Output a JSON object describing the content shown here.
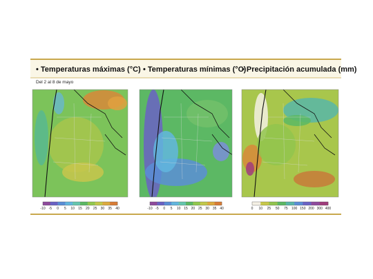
{
  "subtitle": "Del 2 al 8 de mayo",
  "panels": [
    {
      "title": "• Temperaturas máximas (°C)",
      "legend": {
        "ticks": [
          -10,
          -5,
          0,
          5,
          10,
          15,
          20,
          25,
          30,
          35,
          40
        ],
        "colors": [
          "#8e4a9c",
          "#6a62c4",
          "#5a8ed6",
          "#62b6de",
          "#66c6ae",
          "#5cb864",
          "#92c84e",
          "#c2c84a",
          "#dcaa3e",
          "#d87c36"
        ]
      }
    },
    {
      "title": "• Temperaturas mínimas (°C)",
      "legend": {
        "ticks": [
          -10,
          -5,
          0,
          5,
          10,
          15,
          20,
          25,
          30,
          35,
          40
        ],
        "colors": [
          "#8e4a9c",
          "#6a62c4",
          "#5a8ed6",
          "#62b6de",
          "#66c6ae",
          "#5cb864",
          "#92c84e",
          "#c2c84a",
          "#dcaa3e",
          "#d87c36"
        ]
      }
    },
    {
      "title": "• Precipitación acumulada (mm)",
      "legend": {
        "ticks": [
          0,
          10,
          25,
          50,
          75,
          100,
          150,
          200,
          300,
          400
        ],
        "colors": [
          "#f4f0e4",
          "#c8c84a",
          "#92c44e",
          "#5cb864",
          "#58b6a8",
          "#5a8ed6",
          "#6a62c4",
          "#8e4a9c",
          "#a03c7c"
        ]
      }
    }
  ]
}
